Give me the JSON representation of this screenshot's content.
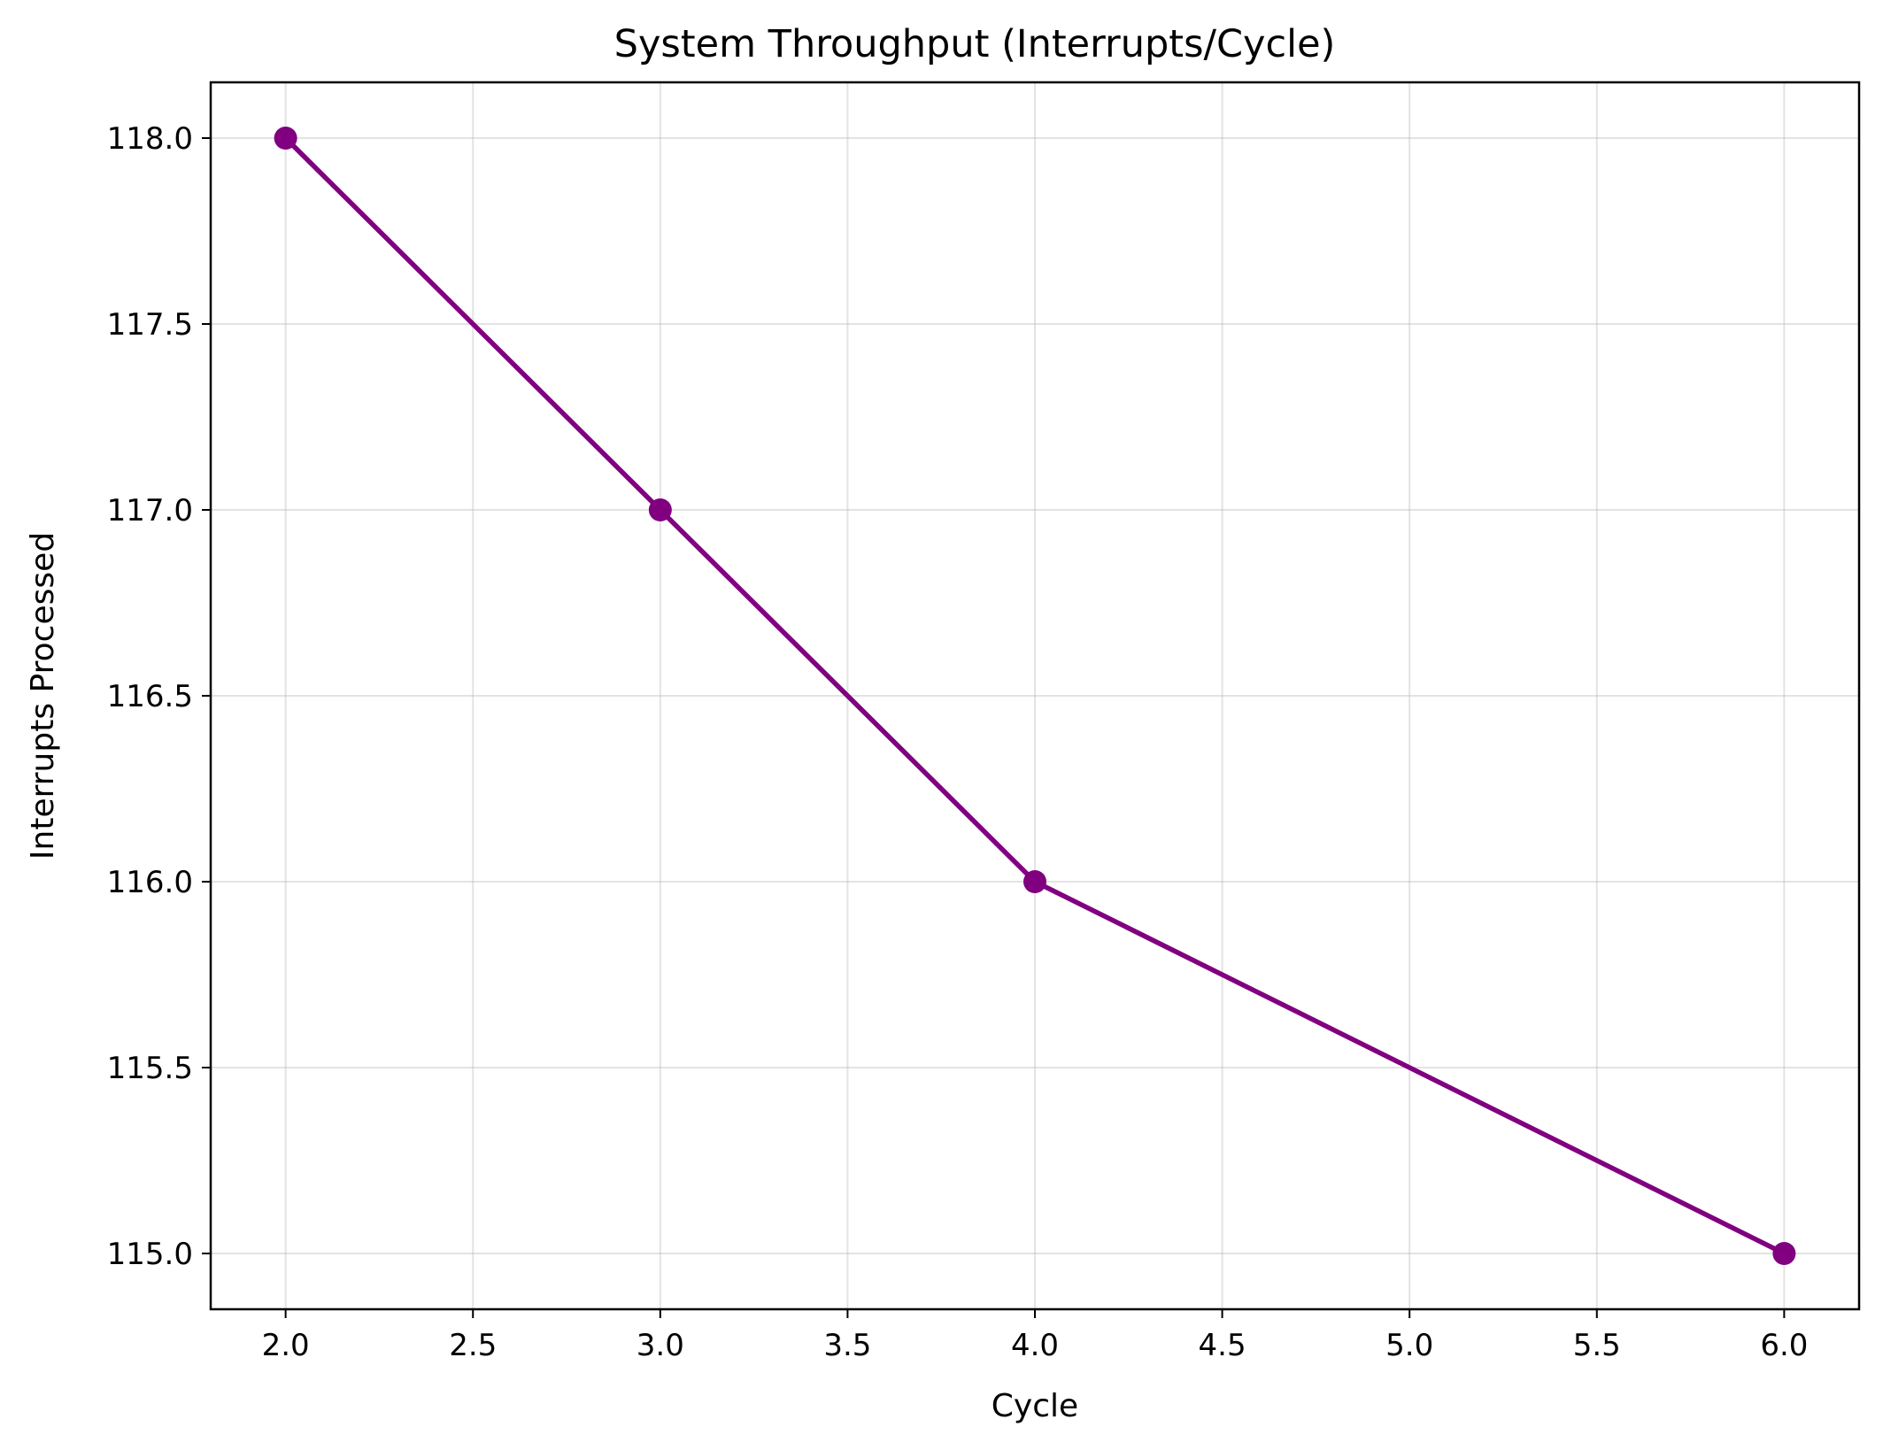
{
  "chart_data": {
    "type": "line",
    "title": "System Throughput (Interrupts/Cycle)",
    "xlabel": "Cycle",
    "ylabel": "Interrupts Processed",
    "x": [
      2,
      3,
      4,
      6
    ],
    "series": [
      {
        "values": [
          118,
          117,
          116,
          115
        ],
        "color": "#800080",
        "marker": "circle"
      }
    ],
    "xlim": [
      1.8,
      6.2
    ],
    "ylim": [
      114.85,
      118.15
    ],
    "xticks": [
      "2.0",
      "2.5",
      "3.0",
      "3.5",
      "4.0",
      "4.5",
      "5.0",
      "5.5",
      "6.0"
    ],
    "yticks": [
      "115.0",
      "115.5",
      "116.0",
      "116.5",
      "117.0",
      "117.5",
      "118.0"
    ],
    "grid": true,
    "legend": "none"
  }
}
